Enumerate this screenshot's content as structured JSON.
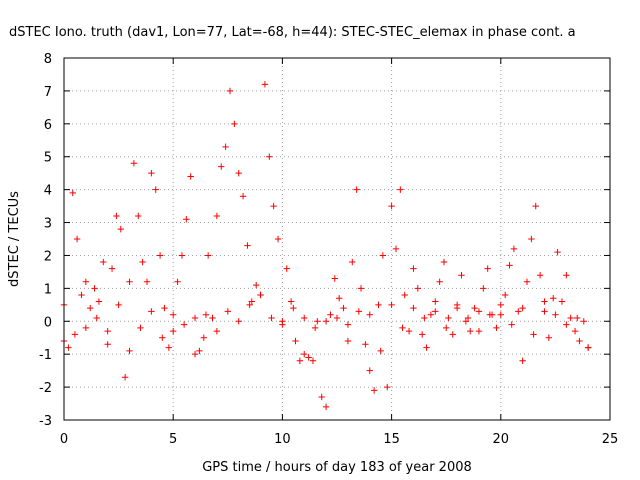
{
  "chart_data": {
    "type": "scatter",
    "title": "dSTEC Iono. truth (dav1, Lon=77, Lat=-68, h=44): STEC-STEC_elemax in phase cont. a",
    "xlabel": "GPS time / hours of day 183 of year 2008",
    "ylabel": "dSTEC  / TECUs",
    "xlim": [
      0,
      25
    ],
    "ylim": [
      -3,
      8
    ],
    "x_ticks": [
      "0",
      "5",
      "10",
      "15",
      "20",
      "25"
    ],
    "y_ticks": [
      "-3",
      "-2",
      "-1",
      "0",
      "1",
      "2",
      "3",
      "4",
      "5",
      "6",
      "7",
      "8"
    ],
    "grid": true,
    "marker": "plus",
    "color": "#ff0000",
    "series": [
      {
        "x": [
          0.0,
          0.2,
          0.4,
          0.6,
          0.8,
          1.0,
          1.2,
          1.4,
          1.6,
          1.8,
          2.0,
          2.2,
          2.4,
          2.6,
          2.8,
          3.0,
          3.2,
          3.4,
          3.6,
          3.8,
          4.0,
          4.2,
          4.4,
          4.6,
          4.8,
          5.0,
          5.2,
          5.4,
          5.6,
          5.8,
          6.0,
          6.2,
          6.4,
          6.6,
          6.8,
          7.0,
          7.2,
          7.4,
          7.6,
          7.8,
          8.0,
          8.2,
          8.4,
          8.6,
          8.8,
          9.0,
          9.2,
          9.4,
          9.6,
          9.8,
          10.0,
          10.2,
          10.4,
          10.6,
          10.8,
          11.0,
          11.2,
          11.4,
          11.6,
          11.8,
          12.0,
          12.2,
          12.4,
          12.6,
          12.8,
          13.0,
          13.2,
          13.4,
          13.6,
          13.8,
          14.0,
          14.2,
          14.4,
          14.6,
          14.8,
          15.0,
          15.2,
          15.4,
          15.6,
          15.8,
          16.0,
          16.2,
          16.4,
          16.6,
          16.8,
          17.0,
          17.2,
          17.4,
          17.6,
          17.8,
          18.0,
          18.2,
          18.4,
          18.6,
          18.8,
          19.0,
          19.2,
          19.4,
          19.6,
          19.8,
          20.0,
          20.2,
          20.4,
          20.6,
          20.8,
          21.0,
          21.2,
          21.4,
          21.6,
          21.8,
          22.0,
          22.2,
          22.4,
          22.6,
          22.8,
          23.0,
          23.2,
          23.4,
          23.6,
          23.8,
          24.0
        ],
        "y": [
          0.5,
          -0.8,
          3.9,
          2.5,
          0.8,
          1.2,
          0.4,
          1.0,
          0.6,
          1.8,
          -0.7,
          1.6,
          3.2,
          2.8,
          -1.7,
          1.2,
          4.8,
          3.2,
          1.8,
          1.2,
          4.5,
          4.0,
          2.0,
          0.4,
          -0.8,
          0.2,
          1.2,
          2.0,
          3.1,
          4.4,
          -1.0,
          -0.9,
          -0.5,
          2.0,
          0.1,
          3.2,
          4.7,
          5.3,
          7.0,
          6.0,
          4.5,
          3.8,
          2.3,
          0.6,
          1.1,
          0.8,
          7.2,
          5.0,
          3.5,
          2.5,
          0.0,
          1.6,
          0.6,
          -0.6,
          -1.2,
          -1.0,
          -1.1,
          -1.2,
          0.0,
          -2.3,
          -2.6,
          0.2,
          1.3,
          0.7,
          0.4,
          -0.6,
          1.8,
          4.0,
          1.0,
          -0.7,
          -1.5,
          -2.1,
          0.5,
          2.0,
          -2.0,
          3.5,
          2.2,
          4.0,
          0.8,
          -0.3,
          1.6,
          1.0,
          -0.4,
          -0.8,
          0.2,
          0.6,
          1.2,
          1.8,
          0.1,
          -0.4,
          0.5,
          1.4,
          0.0,
          -0.3,
          0.4,
          0.3,
          1.0,
          1.6,
          0.2,
          -0.2,
          0.2,
          0.8,
          1.7,
          2.2,
          0.3,
          -1.2,
          1.2,
          2.5,
          3.5,
          1.4,
          0.3,
          -0.5,
          0.7,
          2.1,
          0.6,
          1.4,
          0.1,
          -0.3,
          -0.6,
          0.0,
          -0.8
        ]
      },
      {
        "x": [
          0.0,
          0.5,
          1.0,
          1.5,
          2.0,
          2.5,
          3.0,
          3.5,
          4.0,
          4.5,
          5.0,
          5.5,
          6.0,
          6.5,
          7.0,
          7.5,
          8.0,
          8.5,
          9.0,
          9.5,
          10.0,
          10.5,
          11.0,
          11.5,
          12.0,
          12.5,
          13.0,
          13.5,
          14.0,
          14.5,
          15.0,
          15.5,
          16.0,
          16.5,
          17.0,
          17.5,
          18.0,
          18.5,
          19.0,
          19.5,
          20.0,
          20.5,
          21.0,
          21.5,
          22.0,
          22.5,
          23.0,
          23.5,
          24.0
        ],
        "y": [
          -0.6,
          -0.4,
          -0.2,
          0.1,
          -0.3,
          0.5,
          -0.9,
          -0.2,
          0.3,
          -0.5,
          -0.3,
          -0.1,
          0.1,
          0.2,
          -0.3,
          0.3,
          0.0,
          0.5,
          0.8,
          0.1,
          -0.1,
          0.4,
          0.1,
          -0.2,
          0.0,
          0.1,
          -0.1,
          0.3,
          0.2,
          -0.9,
          0.5,
          -0.2,
          0.4,
          0.1,
          0.3,
          -0.2,
          0.4,
          0.1,
          -0.3,
          0.2,
          0.5,
          -0.1,
          0.4,
          -0.4,
          0.6,
          0.2,
          -0.1,
          0.1,
          -0.8
        ]
      }
    ]
  }
}
